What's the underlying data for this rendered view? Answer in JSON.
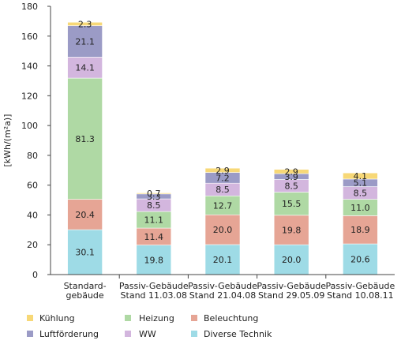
{
  "chart_data": {
    "type": "bar",
    "stacked": true,
    "ylabel": "[kWh/(m²a)]",
    "ylim": [
      0,
      180
    ],
    "yticks": [
      0,
      20,
      40,
      60,
      80,
      100,
      120,
      140,
      160,
      180
    ],
    "grid": false,
    "legend_position": "bottom",
    "categories": [
      [
        "Standard-",
        "gebäude"
      ],
      [
        "Passiv-Gebäude",
        "Stand 11.03.08"
      ],
      [
        "Passiv-Gebäude",
        "Stand 21.04.08"
      ],
      [
        "Passiv-Gebäude",
        "Stand 29.05.09"
      ],
      [
        "Passiv-Gebäude",
        "Stand 10.08.11"
      ]
    ],
    "series": [
      {
        "name": "Diverse Technik",
        "color": "#9edbe6",
        "values": [
          30.1,
          19.8,
          20.1,
          20.0,
          20.6
        ]
      },
      {
        "name": "Beleuchtung",
        "color": "#e6a595",
        "values": [
          20.4,
          11.4,
          20.0,
          19.8,
          18.9
        ]
      },
      {
        "name": "Heizung",
        "color": "#afd9a4",
        "values": [
          81.3,
          11.1,
          12.7,
          15.5,
          11.0
        ]
      },
      {
        "name": "WW",
        "color": "#d3b6de",
        "values": [
          14.1,
          8.5,
          8.5,
          8.5,
          8.5
        ]
      },
      {
        "name": "Luftförderung",
        "color": "#9b9bc6",
        "values": [
          21.1,
          3.3,
          7.2,
          3.9,
          5.1
        ]
      },
      {
        "name": "Kühlung",
        "color": "#f7d877",
        "values": [
          2.3,
          0.7,
          2.9,
          2.9,
          4.1
        ]
      }
    ],
    "legend_order": [
      "Kühlung",
      "Heizung",
      "Beleuchtung",
      "Luftförderung",
      "WW",
      "Diverse Technik"
    ]
  }
}
